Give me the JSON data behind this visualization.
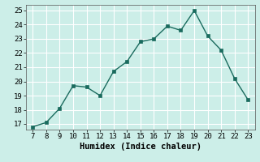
{
  "x": [
    7,
    8,
    9,
    10,
    11,
    12,
    13,
    14,
    15,
    16,
    17,
    18,
    19,
    20,
    21,
    22,
    23
  ],
  "y": [
    16.8,
    17.1,
    18.1,
    19.7,
    19.6,
    19.0,
    20.7,
    21.4,
    22.8,
    23.0,
    23.9,
    23.6,
    25.0,
    23.2,
    22.2,
    20.2,
    18.7
  ],
  "line_color": "#1a6b5e",
  "marker_color": "#1a6b5e",
  "bg_color": "#cceee8",
  "grid_color": "#ffffff",
  "xlabel": "Humidex (Indice chaleur)",
  "xlim_min": 6.5,
  "xlim_max": 23.5,
  "ylim_min": 16.6,
  "ylim_max": 25.4,
  "yticks": [
    17,
    18,
    19,
    20,
    21,
    22,
    23,
    24,
    25
  ],
  "xticks": [
    7,
    8,
    9,
    10,
    11,
    12,
    13,
    14,
    15,
    16,
    17,
    18,
    19,
    20,
    21,
    22,
    23
  ],
  "xlabel_fontsize": 7.5,
  "tick_fontsize": 6.5,
  "line_width": 1.0,
  "marker_size": 3.0
}
